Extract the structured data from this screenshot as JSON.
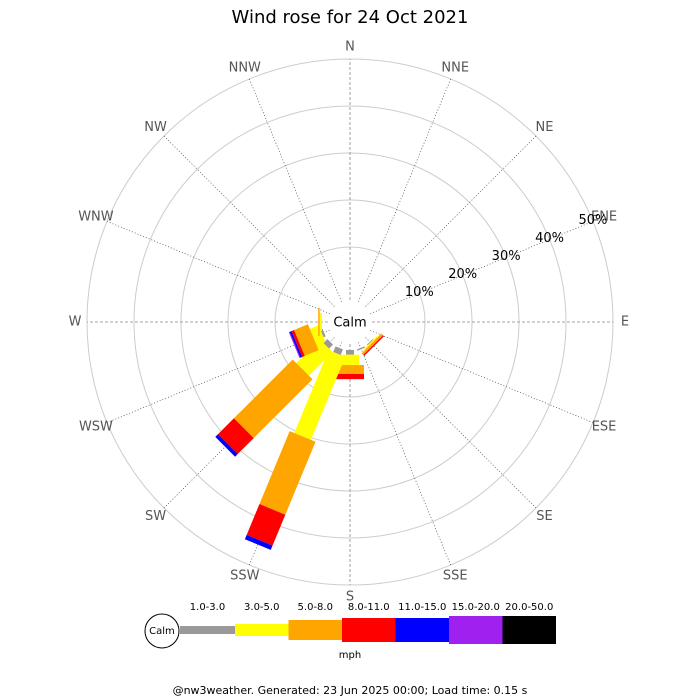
{
  "chart_data": {
    "type": "wind_rose",
    "title": "Wind rose for 24 Oct 2021",
    "directions": [
      "N",
      "NNE",
      "NE",
      "ENE",
      "E",
      "ESE",
      "SE",
      "SSE",
      "S",
      "SSW",
      "SW",
      "WSW",
      "W",
      "WNW",
      "NW",
      "NNW"
    ],
    "calm_label": "Calm",
    "rlim": [
      0,
      50
    ],
    "rticks": [
      {
        "value": 10,
        "label": "10%"
      },
      {
        "value": 20,
        "label": "20%"
      },
      {
        "value": 30,
        "label": "30%"
      },
      {
        "value": 40,
        "label": "40%"
      },
      {
        "value": 50,
        "label": "50%"
      }
    ],
    "unit": "mph",
    "series": [
      {
        "name": "1.0-3.0",
        "color": "#999999",
        "values": [
          0,
          0,
          0,
          0,
          0,
          0,
          0.2,
          0.3,
          1.0,
          1.3,
          1.2,
          0.5,
          0,
          0,
          0,
          0
        ]
      },
      {
        "name": "3.0-5.0",
        "color": "#ffff00",
        "values": [
          0,
          0,
          0,
          0,
          0,
          0,
          0.3,
          0,
          2.2,
          19.1,
          7.1,
          2.0,
          0.5,
          0,
          0,
          0
        ]
      },
      {
        "name": "5.0-8.0",
        "color": "#ffa500",
        "values": [
          0,
          0,
          0,
          0,
          0,
          0,
          0.5,
          0,
          1.9,
          16.8,
          17.7,
          3.2,
          0.3,
          0,
          0,
          0
        ]
      },
      {
        "name": "8.0-11.0",
        "color": "#ff0000",
        "values": [
          0,
          0,
          0,
          0,
          0,
          0,
          0.3,
          0,
          1.1,
          7.1,
          4.8,
          0.6,
          0,
          0,
          0,
          0
        ]
      },
      {
        "name": "11.0-15.0",
        "color": "#0000ff",
        "values": [
          0,
          0,
          0,
          0,
          0,
          0,
          0,
          0,
          0,
          1.0,
          0.8,
          0.4,
          0,
          0,
          0,
          0
        ]
      },
      {
        "name": "15.0-20.0",
        "color": "#a020f0",
        "values": [
          0,
          0,
          0,
          0,
          0,
          0,
          0,
          0,
          0,
          0,
          0,
          0.2,
          0,
          0,
          0,
          0
        ]
      },
      {
        "name": "20.0-50.0",
        "color": "#000000",
        "values": [
          0,
          0,
          0,
          0,
          0,
          0,
          0,
          0,
          0,
          0,
          0,
          0,
          0,
          0,
          0,
          0
        ]
      }
    ],
    "footer": "@nw3weather. Generated: 23 Jun 2025 00:00; Load time: 0.15 s"
  }
}
